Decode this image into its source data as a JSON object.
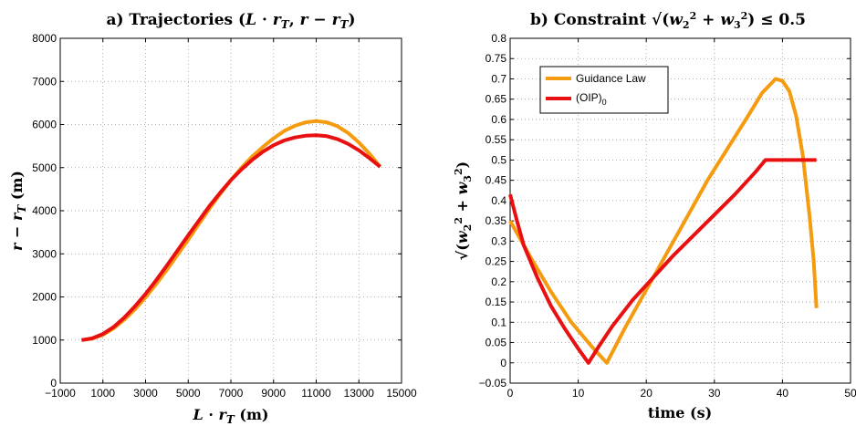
{
  "chart_data": [
    {
      "type": "line",
      "title": "a)  Trajectories  (L · r_T, r − r_T)",
      "xlabel": "L · r_T  (m)",
      "ylabel": "r − r_T  (m)",
      "xlim": [
        -1000,
        15000
      ],
      "ylim": [
        0,
        8000
      ],
      "xticks": [
        -1000,
        1000,
        3000,
        5000,
        7000,
        9000,
        11000,
        13000,
        15000
      ],
      "yticks": [
        0,
        1000,
        2000,
        3000,
        4000,
        5000,
        6000,
        7000,
        8000
      ],
      "grid": true,
      "series": [
        {
          "color": "#f59b0f",
          "points": [
            [
              0,
              1000
            ],
            [
              500,
              1030
            ],
            [
              1000,
              1120
            ],
            [
              1500,
              1270
            ],
            [
              2000,
              1470
            ],
            [
              2500,
              1710
            ],
            [
              3000,
              1990
            ],
            [
              3500,
              2300
            ],
            [
              4000,
              2630
            ],
            [
              4500,
              2980
            ],
            [
              5000,
              3330
            ],
            [
              5500,
              3690
            ],
            [
              6000,
              4050
            ],
            [
              6500,
              4390
            ],
            [
              7000,
              4710
            ],
            [
              7500,
              5000
            ],
            [
              8000,
              5260
            ],
            [
              8500,
              5480
            ],
            [
              9000,
              5680
            ],
            [
              9500,
              5850
            ],
            [
              10000,
              5970
            ],
            [
              10500,
              6050
            ],
            [
              11000,
              6080
            ],
            [
              11500,
              6050
            ],
            [
              12000,
              5960
            ],
            [
              12500,
              5800
            ],
            [
              13000,
              5580
            ],
            [
              13500,
              5320
            ],
            [
              14000,
              5020
            ]
          ]
        },
        {
          "color": "#e81010",
          "points": [
            [
              0,
              1000
            ],
            [
              500,
              1040
            ],
            [
              1000,
              1140
            ],
            [
              1500,
              1300
            ],
            [
              2000,
              1520
            ],
            [
              2500,
              1780
            ],
            [
              3000,
              2070
            ],
            [
              3500,
              2390
            ],
            [
              4000,
              2730
            ],
            [
              4500,
              3080
            ],
            [
              5000,
              3430
            ],
            [
              5500,
              3770
            ],
            [
              6000,
              4110
            ],
            [
              6500,
              4420
            ],
            [
              7000,
              4710
            ],
            [
              7500,
              4960
            ],
            [
              8000,
              5180
            ],
            [
              8500,
              5370
            ],
            [
              9000,
              5520
            ],
            [
              9500,
              5630
            ],
            [
              10000,
              5700
            ],
            [
              10500,
              5740
            ],
            [
              11000,
              5750
            ],
            [
              11500,
              5730
            ],
            [
              12000,
              5660
            ],
            [
              12500,
              5550
            ],
            [
              13000,
              5400
            ],
            [
              13500,
              5220
            ],
            [
              14000,
              5020
            ]
          ]
        }
      ]
    },
    {
      "type": "line",
      "title": "b)  Constraint  √(w2² + w3²) ≤ 0.5",
      "xlabel": "time  (s)",
      "ylabel": "√(w2² + w3²)",
      "xlim": [
        0,
        50
      ],
      "ylim": [
        -0.05,
        0.8
      ],
      "xticks": [
        0,
        10,
        20,
        30,
        40,
        50
      ],
      "yticks": [
        -0.05,
        0,
        0.05,
        0.1,
        0.15,
        0.2,
        0.25,
        0.3,
        0.35,
        0.4,
        0.45,
        0.5,
        0.55,
        0.6,
        0.65,
        0.7,
        0.75,
        0.8
      ],
      "grid": true,
      "legend_placement": "top-left",
      "series": [
        {
          "name": "Guidance Law",
          "color": "#f59b0f",
          "points": [
            [
              0,
              0.35
            ],
            [
              3,
              0.26
            ],
            [
              6,
              0.175
            ],
            [
              9,
              0.1
            ],
            [
              12,
              0.04
            ],
            [
              14.2,
              0
            ],
            [
              17,
              0.09
            ],
            [
              20,
              0.18
            ],
            [
              23,
              0.27
            ],
            [
              26,
              0.36
            ],
            [
              29,
              0.45
            ],
            [
              32,
              0.53
            ],
            [
              35,
              0.61
            ],
            [
              37,
              0.665
            ],
            [
              39,
              0.7
            ],
            [
              40,
              0.695
            ],
            [
              41,
              0.67
            ],
            [
              42,
              0.61
            ],
            [
              43,
              0.51
            ],
            [
              44,
              0.36
            ],
            [
              44.6,
              0.25
            ],
            [
              45,
              0.135
            ]
          ]
        },
        {
          "name": "(OIP)_0",
          "color": "#e81010",
          "points": [
            [
              0,
              0.415
            ],
            [
              1,
              0.35
            ],
            [
              2,
              0.29
            ],
            [
              4,
              0.21
            ],
            [
              6,
              0.14
            ],
            [
              8,
              0.085
            ],
            [
              10,
              0.035
            ],
            [
              11.5,
              0
            ],
            [
              13,
              0.04
            ],
            [
              15,
              0.09
            ],
            [
              18,
              0.155
            ],
            [
              21,
              0.21
            ],
            [
              24,
              0.265
            ],
            [
              27,
              0.315
            ],
            [
              30,
              0.365
            ],
            [
              33,
              0.415
            ],
            [
              36,
              0.47
            ],
            [
              37.5,
              0.5
            ],
            [
              45,
              0.5
            ]
          ]
        }
      ]
    }
  ]
}
